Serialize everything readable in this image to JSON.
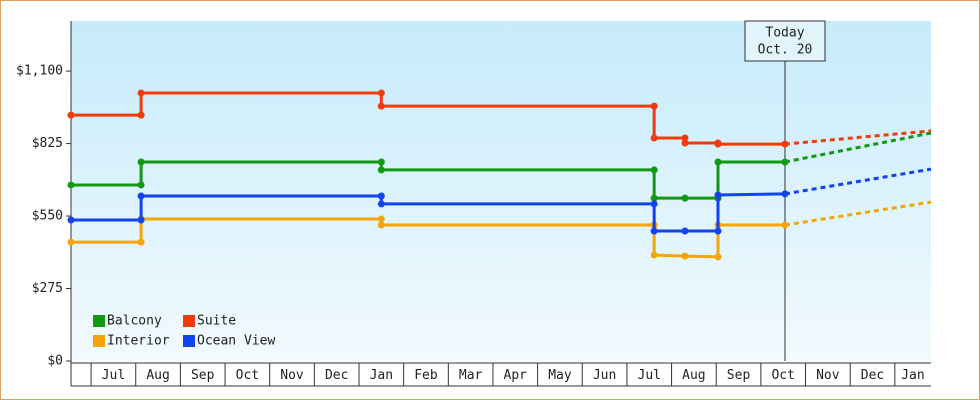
{
  "chart_data": {
    "type": "line",
    "ylim": [
      0,
      1290
    ],
    "yticks": [
      {
        "value": 0,
        "label": "$0"
      },
      {
        "value": 275,
        "label": "$275"
      },
      {
        "value": 550,
        "label": "$550"
      },
      {
        "value": 825,
        "label": "$825"
      },
      {
        "value": 1100,
        "label": "$1,100"
      }
    ],
    "xlim": [
      -0.45,
      18.81
    ],
    "xticks": [
      0,
      1,
      2,
      3,
      4,
      5,
      6,
      7,
      8,
      9,
      10,
      11,
      12,
      13,
      14,
      15,
      16,
      17,
      18
    ],
    "categories": [
      "Jul",
      "Aug",
      "Sep",
      "Oct",
      "Nov",
      "Dec",
      "Jan",
      "Feb",
      "Mar",
      "Apr",
      "May",
      "Jun",
      "Jul",
      "Aug",
      "Sep",
      "Oct",
      "Nov",
      "Dec",
      "Jan"
    ],
    "annotation_lines": [
      "Today",
      "Oct. 20"
    ],
    "annotation_x": 15.54,
    "legend": "lower left",
    "series": [
      {
        "name": "Balcony",
        "color": "#119911",
        "x": [
          -0.45,
          1.12,
          1.12,
          6.5,
          6.5,
          12.61,
          12.61,
          13.3,
          14.04,
          14.04,
          15.54
        ],
        "values": [
          668,
          668,
          755,
          755,
          725,
          725,
          618,
          618,
          618,
          755,
          755
        ],
        "forecast_x": [
          15.54,
          18.81
        ],
        "forecast": [
          755,
          865
        ]
      },
      {
        "name": "Suite",
        "color": "#f03c0a",
        "x": [
          -0.45,
          1.12,
          1.12,
          6.5,
          6.5,
          12.61,
          12.61,
          13.3,
          13.3,
          14.04,
          14.04,
          15.54
        ],
        "values": [
          933,
          933,
          1017,
          1017,
          967,
          967,
          846,
          846,
          827,
          827,
          823,
          823
        ],
        "forecast_x": [
          15.54,
          18.81
        ],
        "forecast": [
          823,
          873
        ]
      },
      {
        "name": "Interior",
        "color": "#f5a40a",
        "x": [
          -0.45,
          1.12,
          1.12,
          6.5,
          6.5,
          12.61,
          12.61,
          13.3,
          14.04,
          14.04,
          15.54
        ],
        "values": [
          451,
          451,
          539,
          539,
          516,
          516,
          402,
          398,
          395,
          516,
          516
        ],
        "forecast_x": [
          15.54,
          18.81
        ],
        "forecast": [
          516,
          603
        ]
      },
      {
        "name": "Ocean View",
        "color": "#1144ee",
        "x": [
          -0.45,
          1.12,
          1.12,
          6.5,
          6.5,
          12.61,
          12.61,
          13.3,
          14.04,
          14.04,
          15.54
        ],
        "values": [
          535,
          535,
          626,
          626,
          596,
          596,
          493,
          493,
          493,
          630,
          634
        ],
        "forecast_x": [
          15.54,
          18.81
        ],
        "forecast": [
          634,
          728
        ]
      }
    ]
  }
}
